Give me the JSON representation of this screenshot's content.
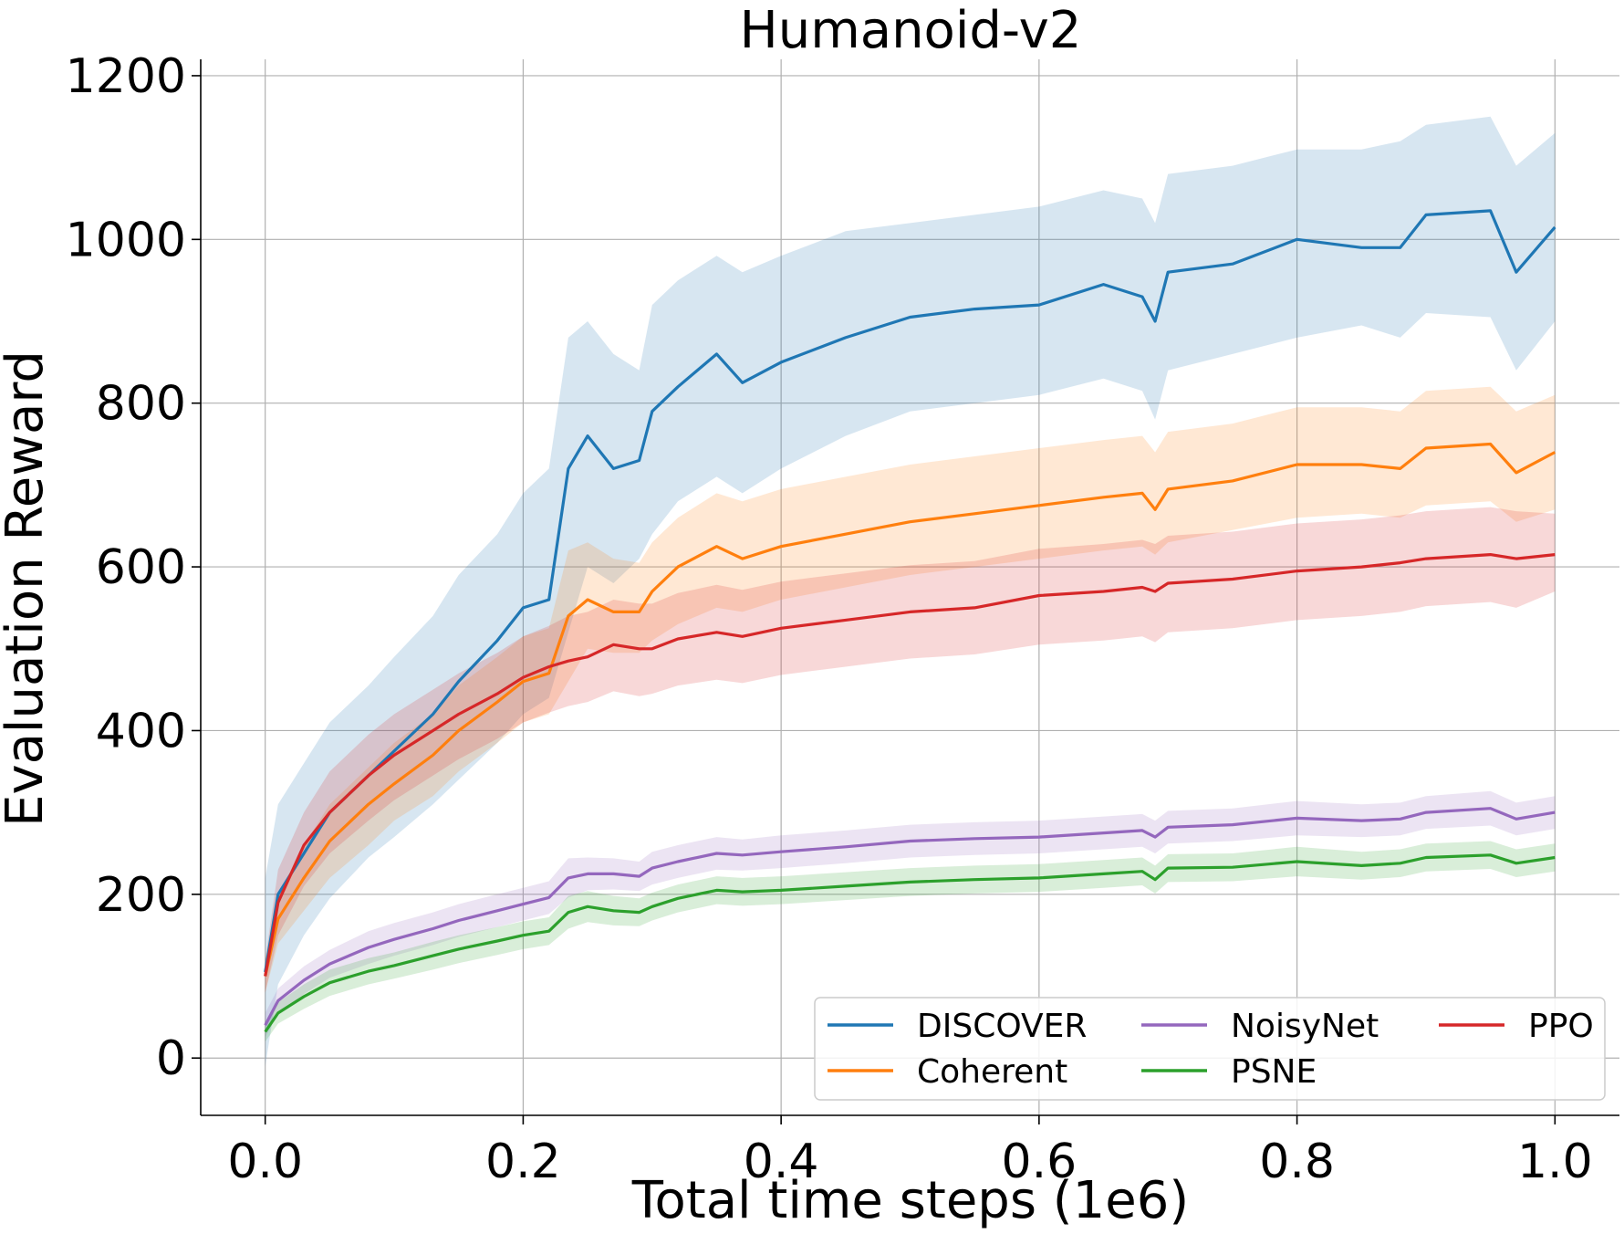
{
  "chart_data": {
    "type": "line",
    "title": "Humanoid-v2",
    "xlabel": "Total time steps (1e6)",
    "ylabel": "Evaluation Reward",
    "xlim": [
      -0.05,
      1.05
    ],
    "ylim": [
      -70,
      1220
    ],
    "xticks": [
      "0.0",
      "0.2",
      "0.4",
      "0.6",
      "0.8",
      "1.0"
    ],
    "yticks": [
      "0",
      "200",
      "400",
      "600",
      "800",
      "1000",
      "1200"
    ],
    "grid": true,
    "legend_position": "lower right",
    "legend_columns": 3,
    "series": [
      {
        "name": "DISCOVER",
        "color": "#1f77b4",
        "x": [
          0.0,
          0.01,
          0.03,
          0.05,
          0.08,
          0.1,
          0.13,
          0.15,
          0.18,
          0.2,
          0.22,
          0.235,
          0.25,
          0.27,
          0.29,
          0.3,
          0.32,
          0.35,
          0.37,
          0.4,
          0.45,
          0.5,
          0.55,
          0.6,
          0.65,
          0.68,
          0.69,
          0.7,
          0.75,
          0.8,
          0.85,
          0.88,
          0.9,
          0.95,
          0.97,
          1.0
        ],
        "y": [
          105,
          200,
          250,
          300,
          345,
          375,
          420,
          460,
          510,
          550,
          560,
          720,
          760,
          720,
          730,
          790,
          820,
          860,
          825,
          850,
          880,
          905,
          915,
          920,
          945,
          930,
          900,
          960,
          970,
          1000,
          990,
          990,
          1030,
          1035,
          960,
          1015
        ],
        "band_low": [
          -10,
          90,
          150,
          195,
          245,
          270,
          310,
          340,
          385,
          420,
          440,
          520,
          600,
          580,
          610,
          640,
          680,
          710,
          690,
          720,
          760,
          790,
          800,
          810,
          830,
          815,
          780,
          840,
          860,
          880,
          895,
          880,
          910,
          905,
          840,
          900
        ],
        "band_high": [
          220,
          310,
          360,
          410,
          455,
          490,
          540,
          590,
          640,
          690,
          720,
          880,
          900,
          860,
          840,
          920,
          950,
          980,
          960,
          980,
          1010,
          1020,
          1030,
          1040,
          1060,
          1050,
          1020,
          1080,
          1090,
          1110,
          1110,
          1120,
          1140,
          1150,
          1090,
          1130
        ]
      },
      {
        "name": "Coherent",
        "color": "#ff7f0e",
        "x": [
          0.0,
          0.01,
          0.03,
          0.05,
          0.08,
          0.1,
          0.13,
          0.15,
          0.18,
          0.2,
          0.22,
          0.235,
          0.25,
          0.27,
          0.29,
          0.3,
          0.32,
          0.35,
          0.37,
          0.4,
          0.45,
          0.5,
          0.55,
          0.6,
          0.65,
          0.68,
          0.69,
          0.7,
          0.75,
          0.8,
          0.85,
          0.88,
          0.9,
          0.95,
          0.97,
          1.0
        ],
        "y": [
          100,
          170,
          220,
          265,
          310,
          335,
          370,
          400,
          435,
          460,
          470,
          540,
          560,
          545,
          545,
          570,
          600,
          625,
          610,
          625,
          640,
          655,
          665,
          675,
          685,
          690,
          670,
          695,
          705,
          725,
          725,
          720,
          745,
          750,
          715,
          740
        ],
        "band_low": [
          80,
          140,
          180,
          220,
          260,
          290,
          320,
          350,
          385,
          410,
          420,
          460,
          500,
          495,
          495,
          510,
          530,
          550,
          545,
          560,
          575,
          590,
          600,
          610,
          620,
          625,
          615,
          630,
          645,
          660,
          665,
          660,
          675,
          680,
          655,
          670
        ],
        "band_high": [
          120,
          200,
          260,
          310,
          355,
          385,
          420,
          455,
          490,
          515,
          525,
          620,
          630,
          610,
          605,
          630,
          660,
          690,
          680,
          695,
          710,
          725,
          735,
          745,
          755,
          760,
          740,
          765,
          775,
          795,
          795,
          790,
          815,
          820,
          790,
          810
        ]
      },
      {
        "name": "NoisyNet",
        "color": "#9467bd",
        "x": [
          0.0,
          0.01,
          0.03,
          0.05,
          0.08,
          0.1,
          0.13,
          0.15,
          0.18,
          0.2,
          0.22,
          0.235,
          0.25,
          0.27,
          0.29,
          0.3,
          0.32,
          0.35,
          0.37,
          0.4,
          0.45,
          0.5,
          0.55,
          0.6,
          0.65,
          0.68,
          0.69,
          0.7,
          0.75,
          0.8,
          0.85,
          0.88,
          0.9,
          0.95,
          0.97,
          1.0
        ],
        "y": [
          40,
          70,
          95,
          115,
          135,
          145,
          158,
          168,
          180,
          188,
          196,
          220,
          225,
          225,
          222,
          232,
          240,
          250,
          248,
          252,
          258,
          265,
          268,
          270,
          275,
          278,
          270,
          282,
          285,
          293,
          290,
          292,
          300,
          305,
          292,
          300
        ],
        "band_low": [
          25,
          55,
          78,
          98,
          115,
          125,
          138,
          148,
          160,
          168,
          176,
          196,
          205,
          206,
          204,
          212,
          220,
          230,
          229,
          232,
          238,
          245,
          248,
          250,
          255,
          258,
          250,
          262,
          265,
          272,
          270,
          272,
          280,
          284,
          272,
          280
        ],
        "band_high": [
          55,
          85,
          112,
          132,
          155,
          165,
          178,
          188,
          200,
          208,
          216,
          244,
          245,
          244,
          240,
          252,
          260,
          270,
          267,
          272,
          278,
          285,
          288,
          290,
          295,
          298,
          290,
          302,
          305,
          314,
          310,
          312,
          320,
          326,
          312,
          320
        ]
      },
      {
        "name": "PSNE",
        "color": "#2ca02c",
        "x": [
          0.0,
          0.01,
          0.03,
          0.05,
          0.08,
          0.1,
          0.13,
          0.15,
          0.18,
          0.2,
          0.22,
          0.235,
          0.25,
          0.27,
          0.29,
          0.3,
          0.32,
          0.35,
          0.37,
          0.4,
          0.45,
          0.5,
          0.55,
          0.6,
          0.65,
          0.68,
          0.69,
          0.7,
          0.75,
          0.8,
          0.85,
          0.88,
          0.9,
          0.95,
          0.97,
          1.0
        ],
        "y": [
          32,
          55,
          75,
          92,
          106,
          113,
          125,
          133,
          143,
          150,
          155,
          178,
          185,
          180,
          178,
          185,
          195,
          205,
          203,
          205,
          210,
          215,
          218,
          220,
          225,
          228,
          218,
          232,
          233,
          240,
          235,
          238,
          245,
          248,
          238,
          245
        ],
        "band_low": [
          20,
          42,
          60,
          76,
          90,
          97,
          108,
          116,
          126,
          133,
          138,
          158,
          166,
          162,
          161,
          168,
          178,
          188,
          186,
          188,
          193,
          198,
          201,
          203,
          208,
          211,
          201,
          215,
          216,
          222,
          218,
          221,
          228,
          231,
          221,
          228
        ],
        "band_high": [
          44,
          68,
          90,
          108,
          122,
          129,
          142,
          150,
          160,
          167,
          172,
          198,
          204,
          198,
          195,
          202,
          212,
          222,
          220,
          222,
          227,
          232,
          235,
          237,
          242,
          245,
          235,
          249,
          250,
          258,
          252,
          255,
          262,
          265,
          255,
          262
        ]
      },
      {
        "name": "PPO",
        "color": "#d62728",
        "x": [
          0.0,
          0.01,
          0.03,
          0.05,
          0.08,
          0.1,
          0.13,
          0.15,
          0.18,
          0.2,
          0.22,
          0.235,
          0.25,
          0.27,
          0.29,
          0.3,
          0.32,
          0.35,
          0.37,
          0.4,
          0.45,
          0.5,
          0.55,
          0.6,
          0.65,
          0.68,
          0.69,
          0.7,
          0.75,
          0.8,
          0.85,
          0.88,
          0.9,
          0.95,
          0.97,
          1.0
        ],
        "y": [
          100,
          190,
          260,
          300,
          345,
          370,
          400,
          420,
          445,
          465,
          478,
          485,
          490,
          505,
          500,
          500,
          512,
          520,
          515,
          525,
          535,
          545,
          550,
          565,
          570,
          575,
          570,
          580,
          585,
          595,
          600,
          605,
          610,
          615,
          610,
          615
        ],
        "band_low": [
          80,
          150,
          210,
          250,
          290,
          315,
          345,
          365,
          390,
          410,
          422,
          430,
          435,
          448,
          442,
          445,
          455,
          462,
          458,
          468,
          478,
          488,
          493,
          505,
          510,
          515,
          508,
          520,
          525,
          535,
          540,
          545,
          552,
          557,
          550,
          570
        ],
        "band_high": [
          120,
          230,
          300,
          350,
          395,
          420,
          450,
          470,
          495,
          515,
          528,
          540,
          545,
          560,
          555,
          555,
          568,
          578,
          572,
          582,
          592,
          602,
          607,
          622,
          628,
          633,
          628,
          638,
          643,
          653,
          658,
          663,
          668,
          673,
          668,
          665
        ]
      }
    ]
  }
}
